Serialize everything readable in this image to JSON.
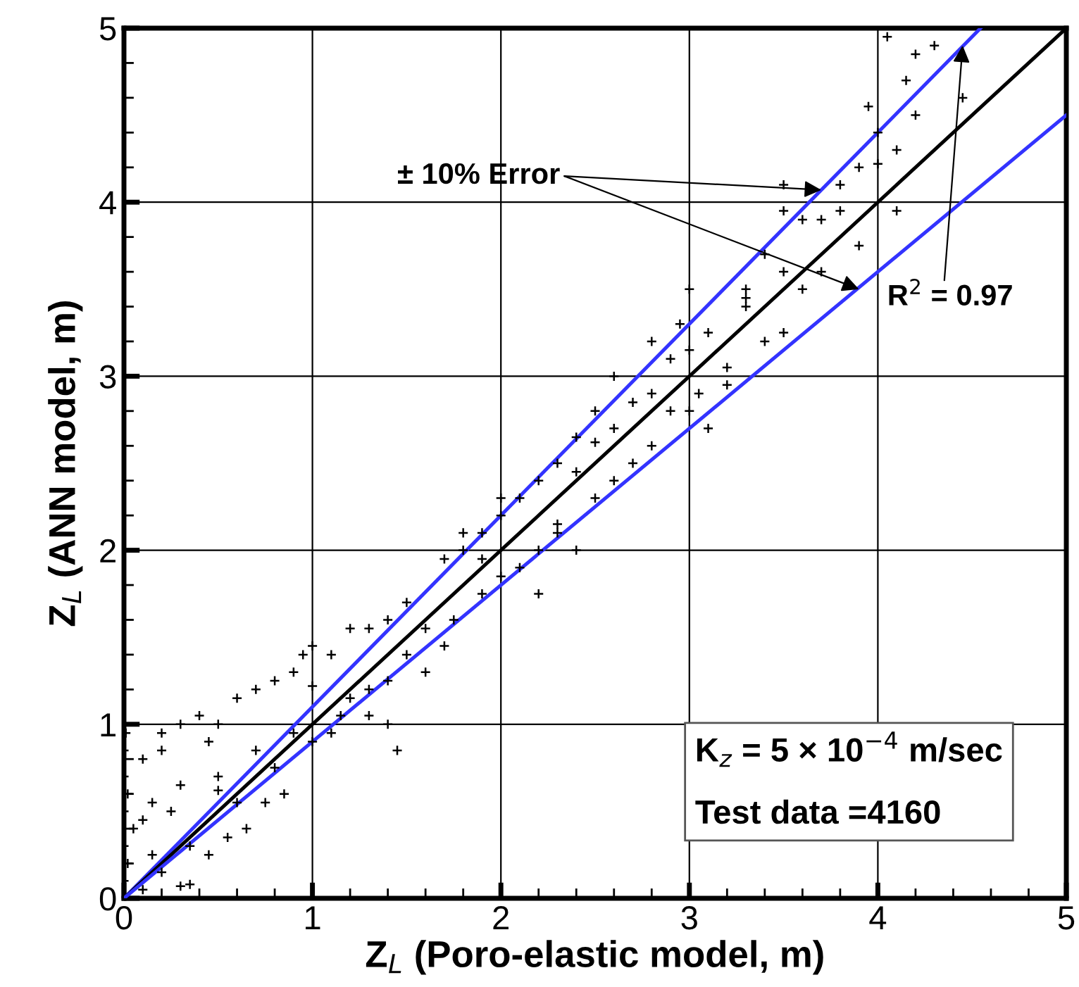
{
  "chart_data": {
    "type": "scatter",
    "xlabel": "Z$_{L}$ (Poro-elastic model, m)",
    "ylabel": "Z$_{L}$ (ANN model, m)",
    "xlim": [
      0,
      5
    ],
    "ylim": [
      0,
      5
    ],
    "xticks": [
      0,
      1,
      2,
      3,
      4,
      5
    ],
    "yticks": [
      0,
      1,
      2,
      3,
      4,
      5
    ],
    "grid": true,
    "marker": "cross",
    "series": [
      {
        "color": "#000000",
        "x": [
          0,
          0,
          0,
          0,
          0,
          0.01,
          0.02,
          0.02,
          0.05,
          0.1,
          0.15,
          0.1,
          0.2,
          0.2,
          0.3,
          0.4,
          0.5,
          0.45,
          0.3,
          0.25,
          0.15,
          0.2,
          0.35,
          0.1,
          0.3,
          0.35,
          0.5,
          0.6,
          0.5,
          0.7,
          0.6,
          0.7,
          0.8,
          0.9,
          0.95,
          1.0,
          1.1,
          1.2,
          1.3,
          1.4,
          1.5,
          0.8,
          0.9,
          1.0,
          1.0,
          1.1,
          1.15,
          1.2,
          1.3,
          1.3,
          1.4,
          1.45,
          0.75,
          0.85,
          0.65,
          0.55,
          0.45,
          1.5,
          1.6,
          1.7,
          1.8,
          1.9,
          2.0,
          1.75,
          1.9,
          2.0,
          2.1,
          2.2,
          2.3,
          1.8,
          1.9,
          1.7,
          2.0,
          2.1,
          2.2,
          2.3,
          2.4,
          2.5,
          2.5,
          2.6,
          2.7,
          2.8,
          2.9,
          2.6,
          2.7,
          2.5,
          2.4,
          2.3,
          2.8,
          2.9,
          2.95,
          2.8,
          2.6,
          3.0,
          3.1,
          3.0,
          3.1,
          3.2,
          3.3,
          3.2,
          3.4,
          3.3,
          3.4,
          3.5,
          3.6,
          3.5,
          3.7,
          3.7,
          3.8,
          3.9,
          3.6,
          3.5,
          3.8,
          4.0,
          3.9,
          4.0,
          4.1,
          4.2,
          4.15,
          4.3,
          4.2,
          3.95,
          4.1,
          4.45,
          3.5,
          3.3,
          3.0,
          3.05,
          2.2,
          2.4,
          1.6,
          1.4,
          4.05
        ],
        "values": [
          0.1,
          0.3,
          0.5,
          0.7,
          0.85,
          0.95,
          0.6,
          0.2,
          0.4,
          0.45,
          0.55,
          0.8,
          0.85,
          0.95,
          1.0,
          1.05,
          1.0,
          0.9,
          0.65,
          0.5,
          0.25,
          0.15,
          0.3,
          0.05,
          0.07,
          0.08,
          0.62,
          0.55,
          0.7,
          0.85,
          1.15,
          1.2,
          1.25,
          1.3,
          1.4,
          1.45,
          1.4,
          1.55,
          1.55,
          1.6,
          1.7,
          0.75,
          0.95,
          1.22,
          0.9,
          0.95,
          1.05,
          1.15,
          1.2,
          1.05,
          1.0,
          0.85,
          0.55,
          0.6,
          0.4,
          0.35,
          0.25,
          1.4,
          1.55,
          1.45,
          2.1,
          1.95,
          2.3,
          1.6,
          1.75,
          1.85,
          1.9,
          2.0,
          2.1,
          2.0,
          2.1,
          1.95,
          2.2,
          2.3,
          2.4,
          2.5,
          2.45,
          2.62,
          2.3,
          2.4,
          2.5,
          2.6,
          2.8,
          2.7,
          2.85,
          2.8,
          2.65,
          2.15,
          2.9,
          3.1,
          3.3,
          3.2,
          3.0,
          2.8,
          2.7,
          3.15,
          3.25,
          3.05,
          3.45,
          2.95,
          3.2,
          3.5,
          3.7,
          3.6,
          3.5,
          3.25,
          3.6,
          3.9,
          3.95,
          3.75,
          3.9,
          3.95,
          4.1,
          4.22,
          4.2,
          4.4,
          4.3,
          4.5,
          4.7,
          4.9,
          4.85,
          4.55,
          3.95,
          4.6,
          4.1,
          3.4,
          3.5,
          2.9,
          1.75,
          2.0,
          1.3,
          1.25,
          4.95
        ]
      },
      {
        "type": "line",
        "color": "#3333ff",
        "marker": "none",
        "x": [
          0,
          4.545
        ],
        "values": [
          0,
          5
        ]
      },
      {
        "type": "line",
        "color": "#000000",
        "marker": "none",
        "x": [
          0,
          5
        ],
        "values": [
          0,
          5
        ]
      },
      {
        "type": "line",
        "color": "#3333ff",
        "marker": "none",
        "x": [
          0,
          5
        ],
        "values": [
          0,
          4.5
        ]
      }
    ],
    "annotations": [
      {
        "text": "± 10% Error",
        "x": 3.9,
        "y": 3.5
      },
      {
        "text": "R$^{2}$ = 0.97",
        "x": 4.45,
        "y": 4.9
      },
      "K$_{z}$ = 5 × 10$^{−4}$ m/sec",
      "Test data =4160"
    ]
  }
}
